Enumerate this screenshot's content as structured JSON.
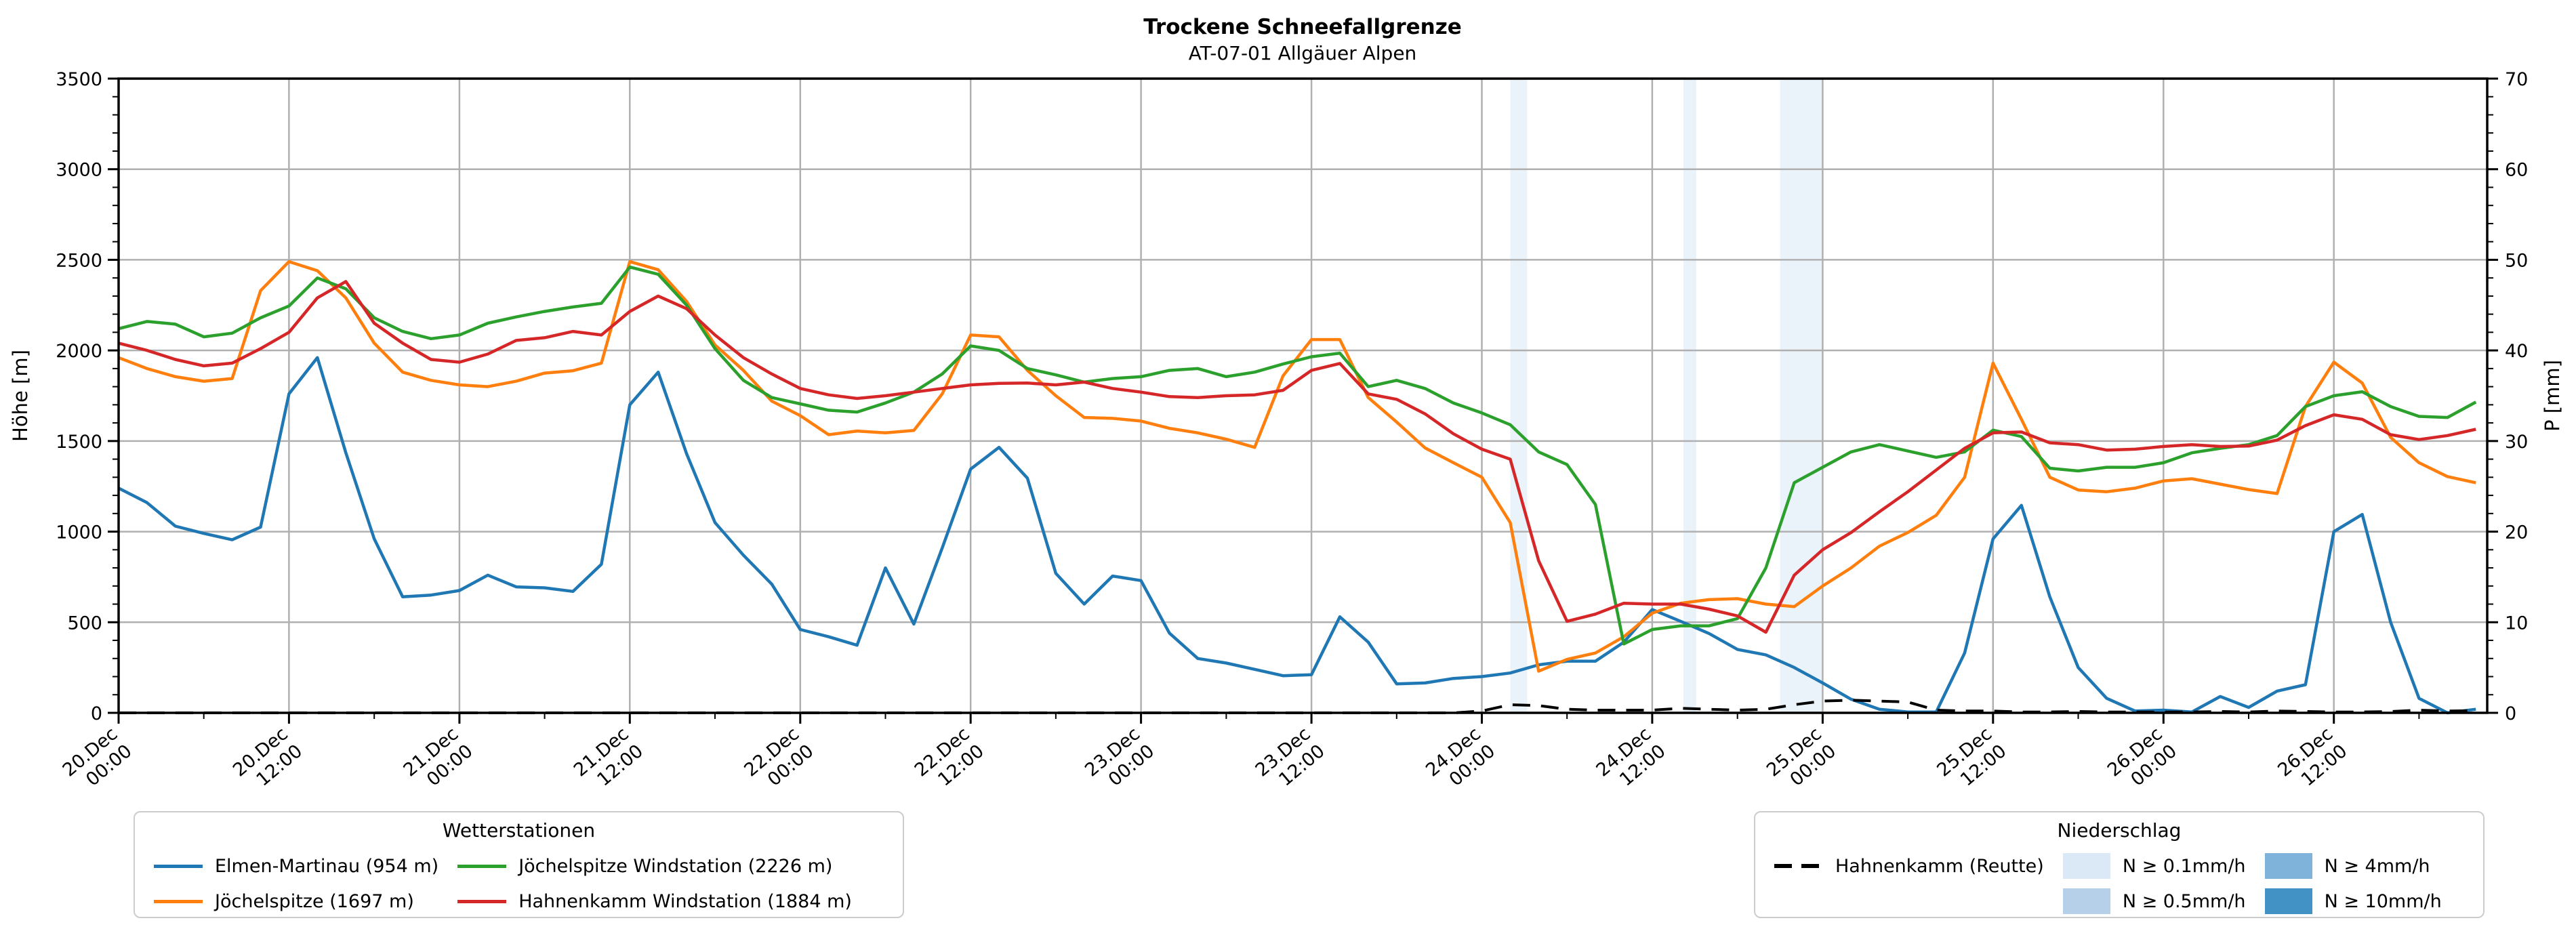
{
  "header": {
    "title": "Trockene Schneefallgrenze",
    "subtitle": "AT-07-01 Allgäuer Alpen"
  },
  "axes": {
    "y_left": {
      "label": "Höhe [m]",
      "ticks": [
        {
          "value": 0,
          "label": "0"
        },
        {
          "value": 500,
          "label": "500"
        },
        {
          "value": 1000,
          "label": "1000"
        },
        {
          "value": 1500,
          "label": "1500"
        },
        {
          "value": 2000,
          "label": "2000"
        },
        {
          "value": 2500,
          "label": "2500"
        },
        {
          "value": 3000,
          "label": "3000"
        },
        {
          "value": 3500,
          "label": "3500"
        }
      ]
    },
    "y_right": {
      "label": "P [mm]",
      "ticks": [
        {
          "value": 0,
          "label": "0"
        },
        {
          "value": 10,
          "label": "10"
        },
        {
          "value": 20,
          "label": "20"
        },
        {
          "value": 30,
          "label": "30"
        },
        {
          "value": 40,
          "label": "40"
        },
        {
          "value": 50,
          "label": "50"
        },
        {
          "value": 60,
          "label": "60"
        },
        {
          "value": 70,
          "label": "70"
        }
      ]
    },
    "x": {
      "ticks": [
        {
          "hour": 0,
          "line1": "20.Dec",
          "line2": "00:00"
        },
        {
          "hour": 12,
          "line1": "20.Dec",
          "line2": "12:00"
        },
        {
          "hour": 24,
          "line1": "21.Dec",
          "line2": "00:00"
        },
        {
          "hour": 36,
          "line1": "21.Dec",
          "line2": "12:00"
        },
        {
          "hour": 48,
          "line1": "22.Dec",
          "line2": "00:00"
        },
        {
          "hour": 60,
          "line1": "22.Dec",
          "line2": "12:00"
        },
        {
          "hour": 72,
          "line1": "23.Dec",
          "line2": "00:00"
        },
        {
          "hour": 84,
          "line1": "23.Dec",
          "line2": "12:00"
        },
        {
          "hour": 96,
          "line1": "24.Dec",
          "line2": "00:00"
        },
        {
          "hour": 108,
          "line1": "24.Dec",
          "line2": "12:00"
        },
        {
          "hour": 120,
          "line1": "25.Dec",
          "line2": "00:00"
        },
        {
          "hour": 132,
          "line1": "25.Dec",
          "line2": "12:00"
        },
        {
          "hour": 144,
          "line1": "26.Dec",
          "line2": "00:00"
        },
        {
          "hour": 156,
          "line1": "26.Dec",
          "line2": "12:00"
        }
      ]
    }
  },
  "colors": {
    "blue": "#1f77b4",
    "orange": "#ff7f0e",
    "green": "#2ca02c",
    "red": "#d62728",
    "black": "#000000",
    "grid": "#b0b0b0",
    "spine": "#000000",
    "precip_01": "#dbe9f6",
    "precip_05": "#b5d0e8",
    "precip_4": "#7fb3d9",
    "precip_10": "#4292c6",
    "band_fill": "#dbe9f6"
  },
  "legends": {
    "stations": {
      "title": "Wetterstationen",
      "items": [
        {
          "label": "Elmen-Martinau (954 m)",
          "color_key": "blue"
        },
        {
          "label": "Jöchelspitze (1697 m)",
          "color_key": "orange"
        },
        {
          "label": "Jöchelspitze Windstation (2226 m)",
          "color_key": "green"
        },
        {
          "label": "Hahnenkamm Windstation (1884 m)",
          "color_key": "red"
        }
      ]
    },
    "precip": {
      "title": "Niederschlag",
      "dashed_label": "Hahnenkamm (Reutte)",
      "levels": [
        {
          "label": "N ≥ 0.1mm/h",
          "color_key": "precip_01"
        },
        {
          "label": "N ≥ 0.5mm/h",
          "color_key": "precip_05"
        },
        {
          "label": "N ≥ 4mm/h",
          "color_key": "precip_4"
        },
        {
          "label": "N ≥ 10mm/h",
          "color_key": "precip_10"
        }
      ]
    }
  },
  "chart_data": {
    "type": "line",
    "title": "Trockene Schneefallgrenze",
    "subtitle": "AT-07-01 Allgäuer Alpen",
    "xlabel": "",
    "ylabel": "Höhe [m]",
    "y2label": "P [mm]",
    "x_unit": "hours since 20.Dec 00:00",
    "x_max": 166.8,
    "ylim": [
      0,
      3500
    ],
    "y2lim": [
      0,
      70
    ],
    "grid": true,
    "x": [
      0,
      2,
      4,
      6,
      8,
      10,
      12,
      14,
      16,
      18,
      20,
      22,
      24,
      26,
      28,
      30,
      32,
      34,
      36,
      38,
      40,
      42,
      44,
      46,
      48,
      50,
      52,
      54,
      56,
      58,
      60,
      62,
      64,
      66,
      68,
      70,
      72,
      74,
      76,
      78,
      80,
      82,
      84,
      86,
      88,
      90,
      92,
      94,
      96,
      98,
      100,
      102,
      104,
      106,
      108,
      110,
      112,
      114,
      116,
      118,
      120,
      122,
      124,
      126,
      128,
      130,
      132,
      134,
      136,
      138,
      140,
      142,
      144,
      146,
      148,
      150,
      152,
      154,
      156,
      158,
      160,
      162,
      164,
      166
    ],
    "series": [
      {
        "name": "Elmen-Martinau (954 m)",
        "axis": "left",
        "style": "solid",
        "color_key": "blue",
        "values": [
          1240,
          1160,
          1030,
          990,
          955,
          1025,
          1760,
          1960,
          1435,
          960,
          640,
          650,
          675,
          760,
          695,
          690,
          670,
          820,
          1700,
          1880,
          1430,
          1050,
          870,
          710,
          460,
          420,
          373,
          800,
          490,
          910,
          1345,
          1465,
          1295,
          770,
          600,
          755,
          730,
          440,
          300,
          275,
          240,
          205,
          210,
          530,
          390,
          160,
          165,
          190,
          200,
          220,
          265,
          285,
          285,
          390,
          570,
          505,
          438,
          350,
          320,
          250,
          165,
          75,
          20,
          5,
          5,
          330,
          960,
          1145,
          640,
          250,
          80,
          10,
          15,
          5,
          90,
          30,
          120,
          155,
          1000,
          1095,
          500,
          80,
          0,
          20
        ]
      },
      {
        "name": "Jöchelspitze (1697 m)",
        "axis": "left",
        "style": "solid",
        "color_key": "orange",
        "values": [
          1960,
          1900,
          1855,
          1830,
          1845,
          2330,
          2490,
          2440,
          2290,
          2040,
          1880,
          1835,
          1810,
          1800,
          1830,
          1875,
          1888,
          1930,
          2490,
          2445,
          2270,
          2030,
          1890,
          1720,
          1640,
          1535,
          1555,
          1545,
          1558,
          1760,
          2085,
          2075,
          1890,
          1750,
          1630,
          1625,
          1610,
          1570,
          1545,
          1510,
          1465,
          1860,
          2060,
          2060,
          1740,
          1605,
          1462,
          1380,
          1300,
          1050,
          230,
          295,
          330,
          420,
          550,
          605,
          625,
          630,
          600,
          586,
          700,
          800,
          920,
          995,
          1090,
          1300,
          1930,
          1620,
          1300,
          1230,
          1220,
          1240,
          1280,
          1292,
          1262,
          1232,
          1210,
          1690,
          1935,
          1820,
          1520,
          1380,
          1304,
          1270
        ]
      },
      {
        "name": "Jöchelspitze Windstation (2226 m)",
        "axis": "left",
        "style": "solid",
        "color_key": "green",
        "values": [
          2120,
          2160,
          2145,
          2075,
          2095,
          2180,
          2245,
          2400,
          2340,
          2180,
          2105,
          2065,
          2085,
          2150,
          2185,
          2215,
          2240,
          2260,
          2460,
          2420,
          2250,
          2010,
          1835,
          1740,
          1705,
          1670,
          1660,
          1710,
          1770,
          1870,
          2025,
          2000,
          1900,
          1865,
          1825,
          1845,
          1855,
          1890,
          1900,
          1855,
          1880,
          1925,
          1965,
          1985,
          1800,
          1835,
          1790,
          1710,
          1655,
          1590,
          1440,
          1370,
          1150,
          380,
          460,
          480,
          480,
          520,
          800,
          1270,
          1355,
          1440,
          1480,
          1445,
          1410,
          1440,
          1560,
          1525,
          1350,
          1335,
          1355,
          1355,
          1380,
          1435,
          1460,
          1480,
          1530,
          1690,
          1750,
          1772,
          1690,
          1636,
          1630,
          1715
        ]
      },
      {
        "name": "Hahnenkamm Windstation (1884 m)",
        "axis": "left",
        "style": "solid",
        "color_key": "red",
        "values": [
          2040,
          2000,
          1950,
          1915,
          1930,
          2010,
          2100,
          2290,
          2380,
          2150,
          2040,
          1950,
          1935,
          1980,
          2055,
          2070,
          2105,
          2085,
          2215,
          2300,
          2230,
          2085,
          1960,
          1870,
          1790,
          1755,
          1735,
          1750,
          1770,
          1790,
          1810,
          1818,
          1820,
          1810,
          1825,
          1790,
          1770,
          1745,
          1740,
          1750,
          1755,
          1780,
          1890,
          1928,
          1760,
          1730,
          1650,
          1540,
          1455,
          1400,
          840,
          505,
          545,
          605,
          600,
          600,
          572,
          535,
          445,
          760,
          900,
          995,
          1110,
          1220,
          1340,
          1460,
          1545,
          1550,
          1490,
          1480,
          1450,
          1455,
          1470,
          1480,
          1470,
          1472,
          1505,
          1585,
          1645,
          1620,
          1535,
          1508,
          1530,
          1565
        ]
      },
      {
        "name": "Hahnenkamm (Reutte)",
        "axis": "right",
        "style": "dashed",
        "color_key": "black",
        "values": [
          0,
          0,
          0,
          0,
          0,
          0,
          0,
          0,
          0,
          0,
          0,
          0,
          0,
          0,
          0,
          0,
          0,
          0,
          0,
          0,
          0,
          0,
          0,
          0,
          0,
          0,
          0,
          0,
          0,
          0,
          0,
          0,
          0,
          0,
          0,
          0,
          0,
          0,
          0,
          0,
          0,
          0,
          0,
          0,
          0,
          0,
          0,
          0,
          0.2,
          0.9,
          0.8,
          0.4,
          0.3,
          0.3,
          0.3,
          0.5,
          0.4,
          0.3,
          0.4,
          0.9,
          1.3,
          1.4,
          1.3,
          1.2,
          0.3,
          0.2,
          0.2,
          0.1,
          0.1,
          0.15,
          0.1,
          0.1,
          0.1,
          0.1,
          0.15,
          0.1,
          0.2,
          0.15,
          0.1,
          0.1,
          0.15,
          0.3,
          0.2,
          0.25
        ]
      }
    ],
    "precip_spans": [
      {
        "start_hour": 98.0,
        "end_hour": 99.2,
        "level": "N ≥ 0.1mm/h"
      },
      {
        "start_hour": 110.2,
        "end_hour": 111.1,
        "level": "N ≥ 0.1mm/h"
      },
      {
        "start_hour": 117.0,
        "end_hour": 120.0,
        "level": "N ≥ 0.1mm/h"
      }
    ],
    "legend_position": "below"
  }
}
